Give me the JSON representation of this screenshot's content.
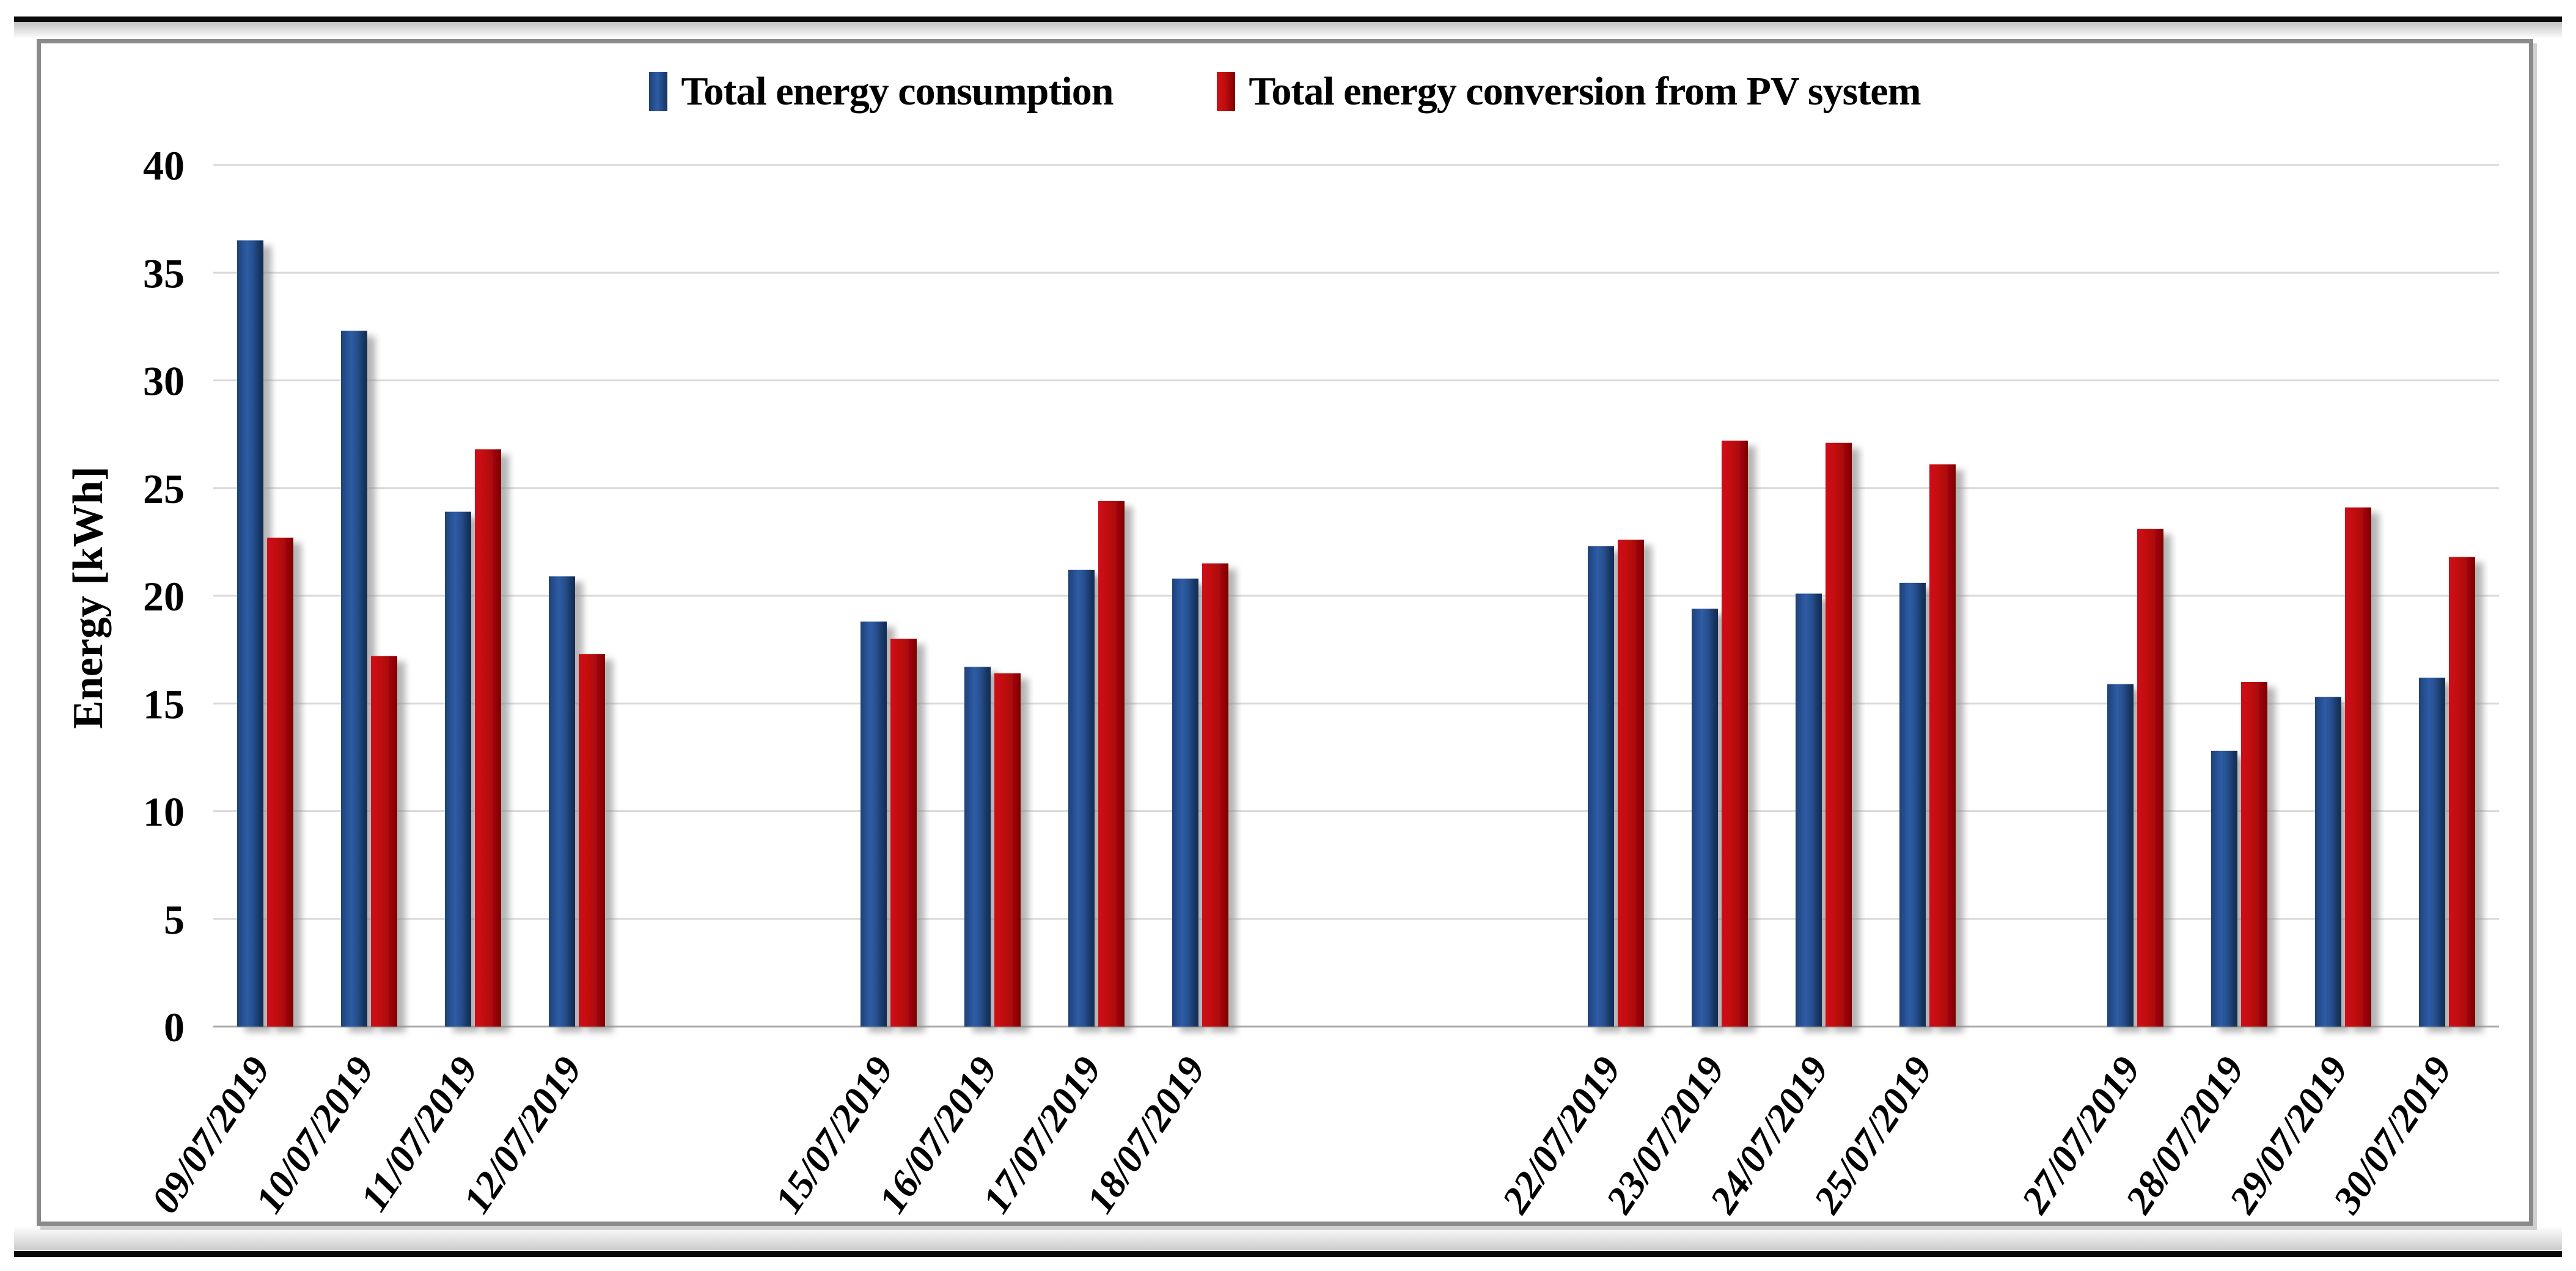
{
  "page": {
    "background": "#ffffff"
  },
  "legend": {
    "items": [
      {
        "label": "Total energy consumption",
        "color": "#2f5ca6"
      },
      {
        "label": "Total energy conversion from PV system",
        "color": "#c00d10"
      }
    ]
  },
  "y_axis": {
    "title": "Energy [kWh]",
    "min": 0,
    "max": 40,
    "step": 5
  },
  "chart_data": {
    "type": "bar",
    "title": "",
    "categories": [
      "09/07/2019",
      "10/07/2019",
      "11/07/2019",
      "12/07/2019",
      "15/07/2019",
      "16/07/2019",
      "17/07/2019",
      "18/07/2019",
      "22/07/2019",
      "23/07/2019",
      "24/07/2019",
      "25/07/2019",
      "27/07/2019",
      "28/07/2019",
      "29/07/2019",
      "30/07/2019"
    ],
    "series": [
      {
        "name": "Total energy consumption",
        "color": "#2f5ca6",
        "values": [
          36.5,
          32.3,
          23.9,
          20.9,
          18.8,
          16.7,
          21.2,
          20.8,
          22.3,
          19.4,
          20.1,
          20.6,
          15.9,
          12.8,
          15.3,
          16.2
        ]
      },
      {
        "name": "Total energy conversion from PV system",
        "color": "#c00d10",
        "values": [
          22.7,
          17.2,
          26.8,
          17.3,
          18.0,
          16.4,
          24.4,
          21.5,
          22.6,
          27.2,
          27.1,
          26.1,
          23.1,
          16.0,
          24.1,
          21.8
        ]
      }
    ],
    "xlabel": "",
    "ylabel": "Energy [kWh]",
    "ylim": [
      0,
      40
    ],
    "grid": true,
    "legend_position": "top",
    "x_axis": {
      "type": "date",
      "start_day_label": "09/07/2019",
      "end_day_label": "30/07/2019",
      "total_slots": 22,
      "missing_days": [
        "13/07/2019",
        "14/07/2019",
        "19/07/2019",
        "20/07/2019",
        "21/07/2019",
        "26/07/2019"
      ]
    }
  },
  "colors": {
    "bar_blue": "#2f5ca6",
    "bar_blue_dark": "#16345f",
    "bar_red": "#c00d10",
    "bar_red_dark": "#7c0103",
    "gridline": "#d9d9d9",
    "axis_line": "#adadad",
    "frame_border": "#8a8a8a",
    "page_rule": "#0a0a0a",
    "text": "#000000"
  }
}
